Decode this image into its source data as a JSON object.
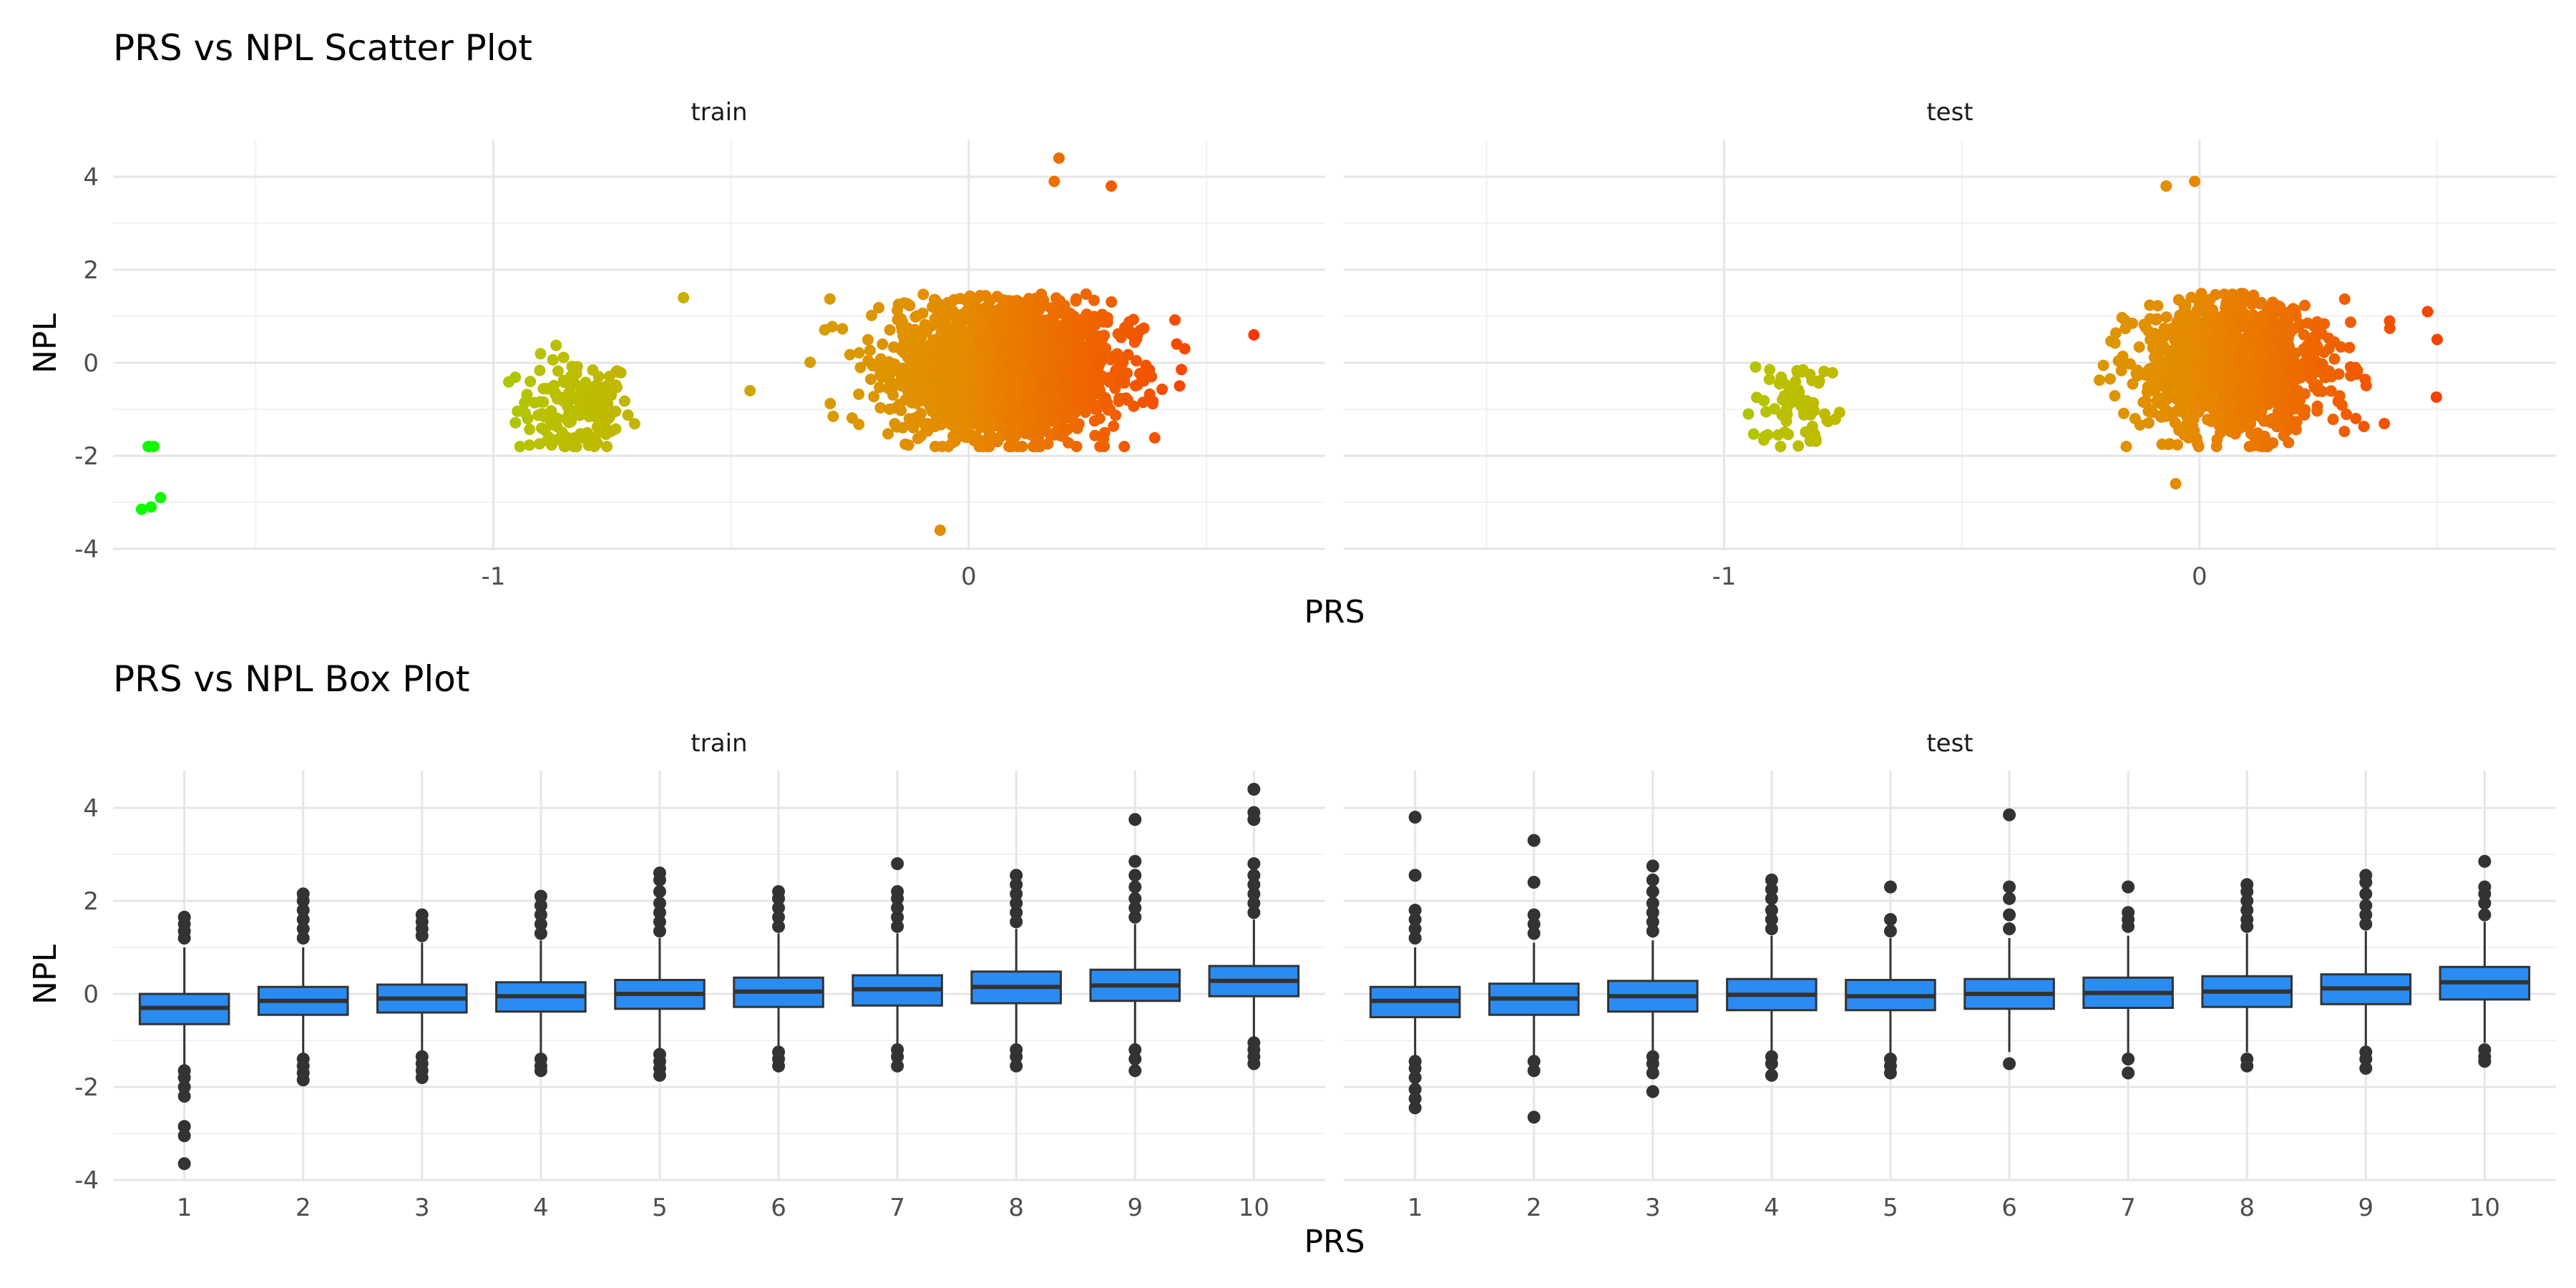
{
  "chart_data": [
    {
      "type": "scatter",
      "title": "PRS vs NPL Scatter Plot",
      "xlabel": "PRS",
      "ylabel": "NPL",
      "xlim": [
        -1.8,
        0.75
      ],
      "ylim": [
        -4,
        4.8
      ],
      "x_ticks": [
        -1,
        0
      ],
      "x_minor_ticks": [
        -1.5,
        -0.5,
        0.5
      ],
      "y_ticks": [
        -4,
        -2,
        0,
        2,
        4
      ],
      "grid": true,
      "color_gradient": [
        "#00ff00",
        "#b8c200",
        "#e68a00",
        "#ff2000"
      ],
      "panels": [
        {
          "name": "train",
          "clusters": [
            {
              "x_center": -1.72,
              "y_center": -3.05,
              "x_spread": 0.015,
              "y_spread": 0.12,
              "count": 3
            },
            {
              "x_center": -0.83,
              "y_center": -1.0,
              "x_spread": 0.06,
              "y_spread": 0.55,
              "count": 150
            },
            {
              "x_center": 0.08,
              "y_center": -0.1,
              "x_spread": 0.11,
              "y_spread": 0.7,
              "count": 2400
            }
          ],
          "points": [
            {
              "x": -1.74,
              "y": -3.15
            },
            {
              "x": -1.72,
              "y": -3.1
            },
            {
              "x": -1.7,
              "y": -2.9
            },
            {
              "x": -0.6,
              "y": 1.4
            },
            {
              "x": -0.46,
              "y": -0.6
            },
            {
              "x": 0.6,
              "y": 0.6
            },
            {
              "x": -0.06,
              "y": -3.6
            },
            {
              "x": 0.19,
              "y": 4.4
            },
            {
              "x": 0.18,
              "y": 3.9
            },
            {
              "x": 0.3,
              "y": 3.8
            }
          ]
        },
        {
          "name": "test",
          "clusters": [
            {
              "x_center": -0.84,
              "y_center": -1.0,
              "x_spread": 0.05,
              "y_spread": 0.55,
              "count": 70
            },
            {
              "x_center": 0.07,
              "y_center": -0.1,
              "x_spread": 0.1,
              "y_spread": 0.7,
              "count": 1200
            }
          ],
          "points": [
            {
              "x": -0.07,
              "y": 3.8
            },
            {
              "x": -0.01,
              "y": 3.9
            },
            {
              "x": -0.05,
              "y": -2.6
            },
            {
              "x": 0.48,
              "y": 1.1
            },
            {
              "x": 0.5,
              "y": 0.5
            },
            {
              "x": 0.4,
              "y": 0.9
            }
          ]
        }
      ]
    },
    {
      "type": "box",
      "title": "PRS vs NPL Box Plot",
      "xlabel": "PRS",
      "ylabel": "NPL",
      "categories": [
        "1",
        "2",
        "3",
        "4",
        "5",
        "6",
        "7",
        "8",
        "9",
        "10"
      ],
      "ylim": [
        -4,
        4.8
      ],
      "y_ticks": [
        -4,
        -2,
        0,
        2,
        4
      ],
      "grid": true,
      "box_color": "#2a8cf2",
      "edge_color": "#333333",
      "panels": [
        {
          "name": "train",
          "boxes": [
            {
              "q1": -0.65,
              "median": -0.3,
              "q3": 0.0,
              "whisker_low": -1.55,
              "whisker_high": 1.0,
              "outliers_high": [
                1.2,
                1.35,
                1.5,
                1.65
              ],
              "outliers_low": [
                -1.65,
                -1.8,
                -2.0,
                -2.2,
                -2.85,
                -3.05,
                -3.65
              ]
            },
            {
              "q1": -0.45,
              "median": -0.15,
              "q3": 0.15,
              "whisker_low": -1.3,
              "whisker_high": 1.0,
              "outliers_high": [
                1.2,
                1.4,
                1.6,
                1.8,
                2.0,
                2.15
              ],
              "outliers_low": [
                -1.4,
                -1.55,
                -1.7,
                -1.85
              ]
            },
            {
              "q1": -0.4,
              "median": -0.1,
              "q3": 0.2,
              "whisker_low": -1.25,
              "whisker_high": 1.1,
              "outliers_high": [
                1.25,
                1.4,
                1.55,
                1.7
              ],
              "outliers_low": [
                -1.35,
                -1.5,
                -1.65,
                -1.8
              ]
            },
            {
              "q1": -0.38,
              "median": -0.05,
              "q3": 0.25,
              "whisker_low": -1.3,
              "whisker_high": 1.15,
              "outliers_high": [
                1.3,
                1.5,
                1.7,
                1.9,
                2.1
              ],
              "outliers_low": [
                -1.4,
                -1.55,
                -1.65
              ]
            },
            {
              "q1": -0.32,
              "median": 0.0,
              "q3": 0.3,
              "whisker_low": -1.2,
              "whisker_high": 1.2,
              "outliers_high": [
                1.35,
                1.55,
                1.75,
                1.95,
                2.2,
                2.45,
                2.6
              ],
              "outliers_low": [
                -1.3,
                -1.45,
                -1.6,
                -1.75
              ]
            },
            {
              "q1": -0.28,
              "median": 0.05,
              "q3": 0.35,
              "whisker_low": -1.15,
              "whisker_high": 1.3,
              "outliers_high": [
                1.45,
                1.65,
                1.85,
                2.05,
                2.2
              ],
              "outliers_low": [
                -1.25,
                -1.4,
                -1.55
              ]
            },
            {
              "q1": -0.25,
              "median": 0.1,
              "q3": 0.4,
              "whisker_low": -1.1,
              "whisker_high": 1.3,
              "outliers_high": [
                1.45,
                1.65,
                1.85,
                2.05,
                2.2,
                2.8
              ],
              "outliers_low": [
                -1.2,
                -1.35,
                -1.55
              ]
            },
            {
              "q1": -0.2,
              "median": 0.15,
              "q3": 0.48,
              "whisker_low": -1.1,
              "whisker_high": 1.4,
              "outliers_high": [
                1.55,
                1.75,
                1.95,
                2.15,
                2.35,
                2.55
              ],
              "outliers_low": [
                -1.2,
                -1.35,
                -1.55
              ]
            },
            {
              "q1": -0.15,
              "median": 0.18,
              "q3": 0.52,
              "whisker_low": -1.1,
              "whisker_high": 1.5,
              "outliers_high": [
                1.65,
                1.85,
                2.05,
                2.3,
                2.55,
                2.85,
                3.75
              ],
              "outliers_low": [
                -1.2,
                -1.4,
                -1.65
              ]
            },
            {
              "q1": -0.05,
              "median": 0.28,
              "q3": 0.6,
              "whisker_low": -0.95,
              "whisker_high": 1.6,
              "outliers_high": [
                1.75,
                1.95,
                2.15,
                2.35,
                2.55,
                2.8,
                3.75,
                3.9,
                4.4
              ],
              "outliers_low": [
                -1.05,
                -1.2,
                -1.35,
                -1.5
              ]
            }
          ]
        },
        {
          "name": "test",
          "boxes": [
            {
              "q1": -0.5,
              "median": -0.15,
              "q3": 0.15,
              "whisker_low": -1.35,
              "whisker_high": 1.0,
              "outliers_high": [
                1.2,
                1.4,
                1.6,
                1.8,
                2.55,
                3.8
              ],
              "outliers_low": [
                -1.45,
                -1.6,
                -1.8,
                -2.05,
                -2.25,
                -2.45
              ]
            },
            {
              "q1": -0.45,
              "median": -0.1,
              "q3": 0.22,
              "whisker_low": -1.35,
              "whisker_high": 1.1,
              "outliers_high": [
                1.3,
                1.5,
                1.7,
                2.4,
                3.3
              ],
              "outliers_low": [
                -1.45,
                -1.65,
                -2.65
              ]
            },
            {
              "q1": -0.38,
              "median": -0.05,
              "q3": 0.28,
              "whisker_low": -1.25,
              "whisker_high": 1.15,
              "outliers_high": [
                1.35,
                1.55,
                1.75,
                1.95,
                2.2,
                2.45,
                2.75
              ],
              "outliers_low": [
                -1.35,
                -1.5,
                -1.7,
                -2.1
              ]
            },
            {
              "q1": -0.35,
              "median": -0.02,
              "q3": 0.32,
              "whisker_low": -1.25,
              "whisker_high": 1.25,
              "outliers_high": [
                1.4,
                1.6,
                1.8,
                2.05,
                2.25,
                2.45
              ],
              "outliers_low": [
                -1.35,
                -1.5,
                -1.75
              ]
            },
            {
              "q1": -0.35,
              "median": -0.05,
              "q3": 0.3,
              "whisker_low": -1.3,
              "whisker_high": 1.2,
              "outliers_high": [
                1.35,
                1.6,
                2.3
              ],
              "outliers_low": [
                -1.4,
                -1.55,
                -1.7
              ]
            },
            {
              "q1": -0.32,
              "median": 0.0,
              "q3": 0.32,
              "whisker_low": -1.25,
              "whisker_high": 1.2,
              "outliers_high": [
                1.4,
                1.7,
                2.05,
                2.3,
                3.85
              ],
              "outliers_low": [
                -1.5
              ]
            },
            {
              "q1": -0.3,
              "median": 0.02,
              "q3": 0.35,
              "whisker_low": -1.3,
              "whisker_high": 1.25,
              "outliers_high": [
                1.45,
                1.6,
                1.75,
                2.3
              ],
              "outliers_low": [
                -1.4,
                -1.7
              ]
            },
            {
              "q1": -0.28,
              "median": 0.05,
              "q3": 0.38,
              "whisker_low": -1.25,
              "whisker_high": 1.3,
              "outliers_high": [
                1.45,
                1.6,
                1.8,
                2.0,
                2.2,
                2.35
              ],
              "outliers_low": [
                -1.4,
                -1.55
              ]
            },
            {
              "q1": -0.22,
              "median": 0.12,
              "q3": 0.42,
              "whisker_low": -1.15,
              "whisker_high": 1.35,
              "outliers_high": [
                1.5,
                1.7,
                1.9,
                2.15,
                2.4,
                2.55
              ],
              "outliers_low": [
                -1.25,
                -1.4,
                -1.6
              ]
            },
            {
              "q1": -0.12,
              "median": 0.25,
              "q3": 0.58,
              "whisker_low": -1.05,
              "whisker_high": 1.55,
              "outliers_high": [
                1.7,
                1.95,
                2.15,
                2.3,
                2.85
              ],
              "outliers_low": [
                -1.2,
                -1.35,
                -1.45
              ]
            }
          ]
        }
      ]
    }
  ]
}
